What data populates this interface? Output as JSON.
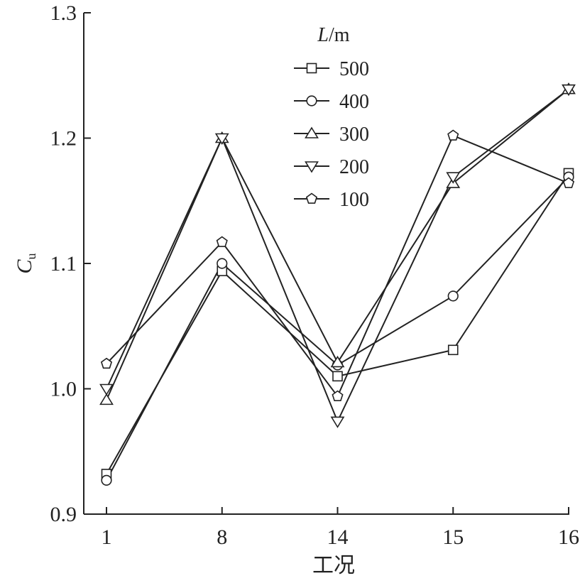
{
  "chart_data": {
    "type": "line",
    "title": "",
    "xlabel": "工况",
    "ylabel": "C",
    "ylabel_subscript": "u",
    "categories": [
      "1",
      "8",
      "14",
      "15",
      "16"
    ],
    "ylim": [
      0.9,
      1.3
    ],
    "yticks": [
      "0.9",
      "1.0",
      "1.1",
      "1.2",
      "1.3"
    ],
    "grid": false,
    "legend": {
      "placement": "top-center",
      "title_italic": "L",
      "title_rest": "/m"
    },
    "series": [
      {
        "name": "500",
        "marker": "square",
        "values": [
          0.932,
          1.094,
          1.01,
          1.031,
          1.172
        ]
      },
      {
        "name": "400",
        "marker": "circle",
        "values": [
          0.927,
          1.1,
          1.019,
          1.074,
          1.169
        ]
      },
      {
        "name": "300",
        "marker": "triangle-up",
        "values": [
          0.991,
          1.2,
          1.021,
          1.164,
          1.239
        ]
      },
      {
        "name": "200",
        "marker": "triangle-down",
        "values": [
          1.0,
          1.2,
          0.974,
          1.169,
          1.239
        ]
      },
      {
        "name": "100",
        "marker": "pentagon",
        "values": [
          1.02,
          1.117,
          0.994,
          1.202,
          1.164
        ]
      }
    ],
    "colors": {
      "line": "#222222",
      "marker_fill": "#ffffff"
    }
  }
}
